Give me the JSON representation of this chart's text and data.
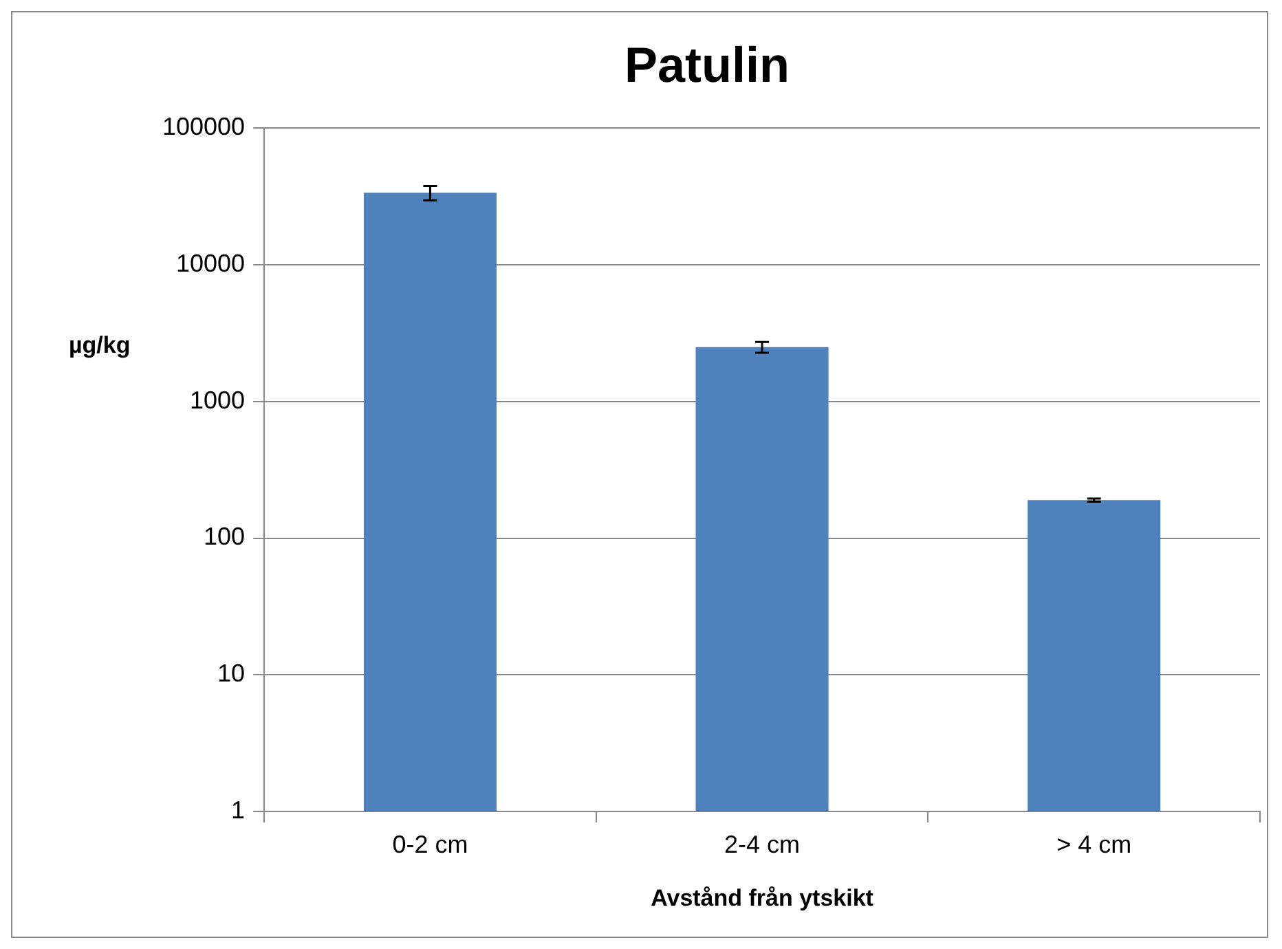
{
  "chart_data": {
    "type": "bar",
    "title": "Patulin",
    "xlabel": "Avstånd från ytskikt",
    "ylabel": "µg/kg",
    "categories": [
      "0-2 cm",
      "2-4 cm",
      "> 4 cm"
    ],
    "values": [
      33700,
      2500,
      190
    ],
    "errors": [
      4000,
      230,
      5
    ],
    "color": "#4f81bd",
    "log": "y",
    "ylim": [
      1,
      100000
    ],
    "yticks": [
      1,
      10,
      100,
      1000,
      10000,
      100000
    ],
    "grid": "y",
    "legend": false
  }
}
